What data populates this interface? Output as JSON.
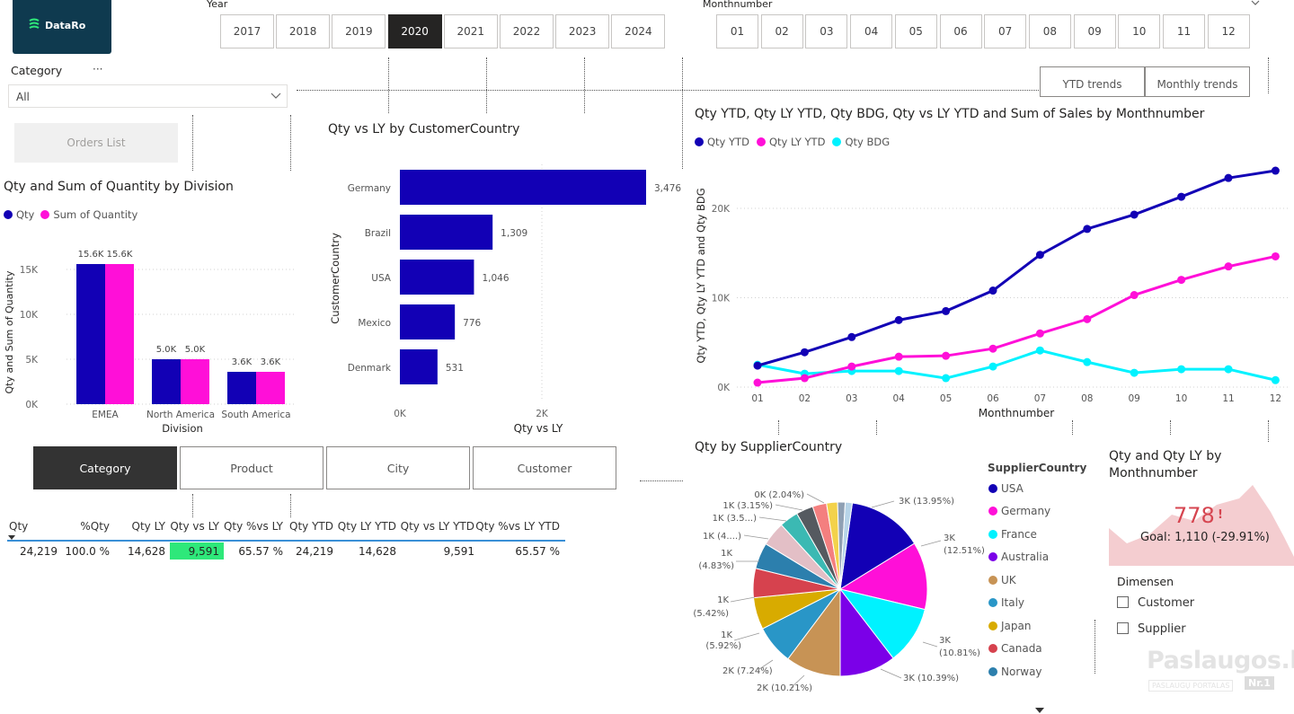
{
  "logo": {
    "text": "DataRo"
  },
  "year_slicer": {
    "label": "Year",
    "options": [
      "2017",
      "2018",
      "2019",
      "2020",
      "2021",
      "2022",
      "2023",
      "2024"
    ],
    "selected": "2020"
  },
  "month_slicer": {
    "label": "Monthnumber",
    "options": [
      "01",
      "02",
      "03",
      "04",
      "05",
      "06",
      "07",
      "08",
      "09",
      "10",
      "11",
      "12"
    ]
  },
  "category_slicer": {
    "label": "Category",
    "value": "All",
    "more": "···"
  },
  "orders_button": "Orders List",
  "trend_buttons": {
    "ytd": "YTD trends",
    "monthly": "Monthly trends"
  },
  "division_chart": {
    "title": "Qty and Sum of Quantity by Division",
    "xlabel": "Division",
    "ylabel": "Qty and Sum of Quantity",
    "legend": [
      "Qty",
      "Sum of Quantity"
    ],
    "ticks": [
      "15K",
      "10K",
      "5K",
      "0K"
    ],
    "categories": [
      "EMEA",
      "North America",
      "South America"
    ],
    "labels_qty": [
      "15.6K",
      "5.0K",
      "3.6K"
    ],
    "labels_sum": [
      "15.6K",
      "5.0K",
      "3.6K"
    ]
  },
  "country_chart": {
    "title": "Qty vs LY by CustomerCountry",
    "xlabel": "Qty vs LY",
    "ylabel": "CustomerCountry",
    "ticks": [
      "0K",
      "2K"
    ],
    "categories": [
      "Germany",
      "Brazil",
      "USA",
      "Mexico",
      "Denmark"
    ],
    "labels": [
      "3,476",
      "1,309",
      "1,046",
      "776",
      "531"
    ]
  },
  "line_chart": {
    "title": "Qty YTD, Qty LY YTD, Qty BDG, Qty vs LY YTD and Sum of Sales by Monthnumber",
    "xlabel": "Monthnumber",
    "ylabel": "Qty YTD, Qty LY YTD and Qty BDG",
    "legend": [
      "Qty YTD",
      "Qty LY YTD",
      "Qty BDG"
    ],
    "ticks": [
      "20K",
      "10K",
      "0K"
    ],
    "months": [
      "01",
      "02",
      "03",
      "04",
      "05",
      "06",
      "07",
      "08",
      "09",
      "10",
      "11",
      "12"
    ]
  },
  "table_tabs": [
    "Category",
    "Product",
    "City",
    "Customer"
  ],
  "table": {
    "headers": [
      "Qty",
      "%Qty",
      "Qty LY",
      "Qty vs LY",
      "Qty %vs LY",
      "Qty YTD",
      "Qty LY YTD",
      "Qty vs LY YTD",
      "Qty %vs LY YTD"
    ],
    "row": [
      "24,219",
      "100.0 %",
      "14,628",
      "9,591",
      "65.57 %",
      "24,219",
      "14,628",
      "9,591",
      "65.57 %"
    ]
  },
  "pie_chart": {
    "title": "Qty by SupplierCountry",
    "legend_title": "SupplierCountry",
    "legend": [
      "USA",
      "Germany",
      "France",
      "Australia",
      "UK",
      "Italy",
      "Japan",
      "Canada",
      "Norway"
    ],
    "labels": [
      "3K (13.95%)",
      "3K",
      "(12.51%)",
      "3K",
      "(10.81%)",
      "3K (10.39%)",
      "2K (10.21%)",
      "2K (7.24%)",
      "1K",
      "(5.92%)",
      "1K",
      "(5.42%)",
      "1K",
      "(4.83%)",
      "1K (4....)",
      "1K (3.5...)",
      "1K (3.15%)",
      "0K (2.04%)"
    ]
  },
  "kpi": {
    "title": "Qty and Qty LY by Monthnumber",
    "value": "778",
    "alert": "!",
    "goal": "Goal: 1,110 (-29.91%)"
  },
  "dimension_slicer": {
    "label": "Dimensen",
    "options": [
      "Customer",
      "Supplier"
    ]
  },
  "watermark": {
    "name": "Paslaugos.lt",
    "sub": "PASLAUGŲ PORTALAS",
    "badge": "Nr.1"
  },
  "colors": {
    "qty": "#1200b5",
    "sum": "#ff0fd8",
    "bdg": "#00f2ff",
    "table_highlight": "#2ee87a",
    "kpi_red": "#d64550",
    "kpi_area": "#f4cdd0"
  },
  "chart_data": [
    {
      "type": "bar",
      "title": "Qty and Sum of Quantity by Division",
      "categories": [
        "EMEA",
        "North America",
        "South America"
      ],
      "series": [
        {
          "name": "Qty",
          "values": [
            15600,
            5000,
            3600
          ]
        },
        {
          "name": "Sum of Quantity",
          "values": [
            15600,
            5000,
            3600
          ]
        }
      ],
      "xlabel": "Division",
      "ylabel": "Qty and Sum of Quantity",
      "ylim": [
        0,
        17500
      ],
      "legend": "top-left"
    },
    {
      "type": "bar",
      "orientation": "horizontal",
      "title": "Qty vs LY by CustomerCountry",
      "categories": [
        "Germany",
        "Brazil",
        "USA",
        "Mexico",
        "Denmark"
      ],
      "values": [
        3476,
        1309,
        1046,
        776,
        531
      ],
      "xlabel": "Qty vs LY",
      "ylabel": "CustomerCountry",
      "xlim": [
        0,
        3500
      ]
    },
    {
      "type": "line",
      "title": "Qty YTD, Qty LY YTD, Qty BDG, Qty vs LY YTD and Sum of Sales by Monthnumber",
      "x": [
        "01",
        "02",
        "03",
        "04",
        "05",
        "06",
        "07",
        "08",
        "09",
        "10",
        "11",
        "12"
      ],
      "series": [
        {
          "name": "Qty YTD",
          "values": [
            2400,
            3900,
            5600,
            7500,
            8500,
            10800,
            14800,
            17700,
            19300,
            21300,
            23400,
            24219
          ]
        },
        {
          "name": "Qty LY YTD",
          "values": [
            500,
            1000,
            2300,
            3400,
            3500,
            4300,
            6000,
            7600,
            10300,
            12000,
            13500,
            14628
          ]
        },
        {
          "name": "Qty BDG",
          "values": [
            2500,
            1500,
            1800,
            1800,
            1000,
            2300,
            4100,
            2800,
            1600,
            2000,
            2000,
            778
          ]
        }
      ],
      "xlabel": "Monthnumber",
      "ylabel": "Qty YTD, Qty LY YTD and Qty BDG",
      "ylim": [
        0,
        25000
      ],
      "legend": "top-left",
      "grid": true
    },
    {
      "type": "pie",
      "title": "Qty by SupplierCountry",
      "slices": [
        {
          "name": "USA",
          "value": 13.95,
          "color": "#1200b5"
        },
        {
          "name": "Germany",
          "value": 12.51,
          "color": "#ff0fd8"
        },
        {
          "name": "France",
          "value": 10.81,
          "color": "#00f2ff"
        },
        {
          "name": "Australia",
          "value": 10.39,
          "color": "#7b00e8"
        },
        {
          "name": "UK",
          "value": 10.21,
          "color": "#c79355"
        },
        {
          "name": "Italy",
          "value": 7.24,
          "color": "#2996c7"
        },
        {
          "name": "Japan",
          "value": 5.92,
          "color": "#d8ab00"
        },
        {
          "name": "Canada",
          "value": 5.42,
          "color": "#d6424e"
        },
        {
          "name": "Norway",
          "value": 4.83,
          "color": "#2c7fad"
        },
        {
          "name": "",
          "value": 4.5,
          "color": "#e3bfc6"
        },
        {
          "name": "",
          "value": 3.5,
          "color": "#3bb9b3"
        },
        {
          "name": "",
          "value": 3.15,
          "color": "#555a60"
        },
        {
          "name": "",
          "value": 2.6,
          "color": "#f47f7f"
        },
        {
          "name": "",
          "value": 2.04,
          "color": "#f3d24b"
        },
        {
          "name": "",
          "value": 1.4,
          "color": "#8fa0b4"
        },
        {
          "name": "",
          "value": 1.3,
          "color": "#b7d4e8"
        }
      ],
      "legend": "right"
    },
    {
      "type": "area",
      "title": "Qty and Qty LY by Monthnumber",
      "values": [
        778
      ],
      "goal": 1110,
      "variance_pct": -29.91
    }
  ]
}
